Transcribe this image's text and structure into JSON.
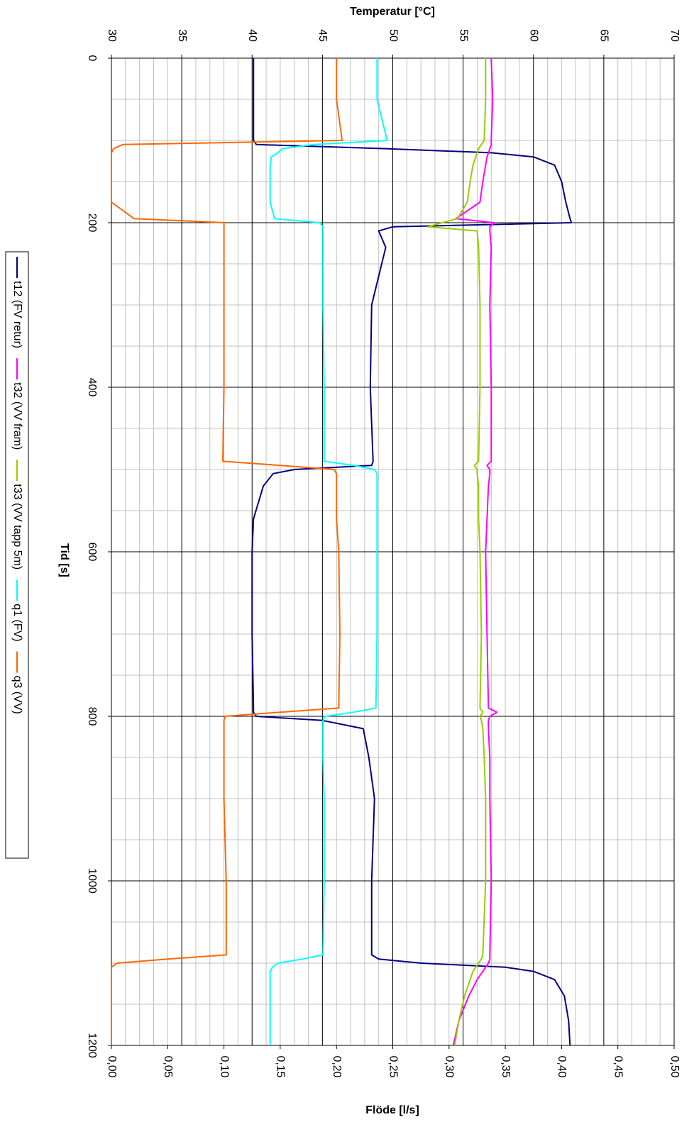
{
  "chart_data": {
    "type": "line",
    "title": "Temperatur [°C]",
    "xlabel": "Tid [s]",
    "y2label": "Flöde [l/s]",
    "x": [
      0,
      50,
      100,
      105,
      110,
      115,
      120,
      130,
      150,
      175,
      195,
      200,
      205,
      210,
      230,
      300,
      400,
      490,
      495,
      500,
      505,
      520,
      560,
      600,
      700,
      790,
      795,
      800,
      805,
      815,
      850,
      900,
      1000,
      1090,
      1095,
      1100,
      1105,
      1110,
      1120,
      1140,
      1170,
      1200
    ],
    "xlim": [
      0,
      1200
    ],
    "xticks": [
      0,
      200,
      400,
      600,
      800,
      1000,
      1200
    ],
    "xminorticks": [
      50,
      100,
      150,
      250,
      300,
      350,
      450,
      500,
      550,
      650,
      700,
      750,
      850,
      900,
      950,
      1050,
      1100,
      1150
    ],
    "ylim": [
      30,
      70
    ],
    "yticks": [
      30,
      35,
      40,
      45,
      50,
      55,
      60,
      65,
      70
    ],
    "yminorticks": [
      31,
      32,
      33,
      34,
      36,
      37,
      38,
      39,
      41,
      42,
      43,
      44,
      46,
      47,
      48,
      49,
      51,
      52,
      53,
      54,
      56,
      57,
      58,
      59,
      61,
      62,
      63,
      64,
      66,
      67,
      68,
      69
    ],
    "y2lim": [
      0,
      0.5
    ],
    "y2ticks": [
      {
        "value": 0,
        "label": "0,00"
      },
      {
        "value": 0.05,
        "label": "0,05"
      },
      {
        "value": 0.1,
        "label": "0,10"
      },
      {
        "value": 0.15,
        "label": "0,15"
      },
      {
        "value": 0.2,
        "label": "0,20"
      },
      {
        "value": 0.25,
        "label": "0,25"
      },
      {
        "value": 0.3,
        "label": "0,30"
      },
      {
        "value": 0.35,
        "label": "0,35"
      },
      {
        "value": 0.4,
        "label": "0,40"
      },
      {
        "value": 0.45,
        "label": "0,45"
      },
      {
        "value": 0.5,
        "label": "0,50"
      }
    ],
    "grid": true,
    "legend": "left",
    "series": [
      {
        "name": "t12 (FV retur)",
        "color": "#000080",
        "values": [
          40.1,
          40.1,
          40.1,
          40.3,
          49.5,
          57.0,
          60.0,
          61.5,
          62.0,
          62.3,
          62.6,
          62.7,
          50.0,
          49.0,
          49.5,
          48.5,
          48.4,
          48.6,
          48.5,
          43.0,
          41.5,
          40.8,
          40.1,
          40.0,
          40.0,
          40.1,
          40.1,
          40.3,
          45.0,
          47.9,
          48.3,
          48.7,
          48.5,
          48.5,
          49.0,
          52.0,
          58.0,
          60.0,
          61.5,
          62.2,
          62.5,
          62.6
        ]
      },
      {
        "name": "t32 (VV fram)",
        "color": "#ff00ff",
        "values": [
          57.0,
          57.1,
          57.0,
          57.0,
          56.9,
          56.8,
          56.7,
          56.6,
          56.4,
          56.2,
          54.5,
          57.2,
          56.9,
          56.9,
          57.0,
          56.9,
          57.0,
          57.0,
          56.7,
          56.9,
          56.9,
          56.8,
          56.7,
          56.6,
          56.7,
          56.8,
          57.4,
          56.9,
          56.8,
          56.8,
          56.9,
          56.9,
          57.0,
          56.9,
          56.9,
          56.8,
          56.6,
          56.4,
          56.0,
          55.4,
          54.7,
          54.3
        ]
      },
      {
        "name": "t33 (VV tapp 5m)",
        "color": "#99cc00",
        "values": [
          56.6,
          56.6,
          56.5,
          56.3,
          56.1,
          56.0,
          55.9,
          55.7,
          55.5,
          55.3,
          54.6,
          53.5,
          52.5,
          56.0,
          56.1,
          56.2,
          56.2,
          56.1,
          55.8,
          56.0,
          56.0,
          56.1,
          56.1,
          56.2,
          56.3,
          56.2,
          56.4,
          56.2,
          56.3,
          56.4,
          56.5,
          56.6,
          56.6,
          56.4,
          56.3,
          56.1,
          55.9,
          55.7,
          55.5,
          55.1,
          54.7,
          54.4
        ]
      },
      {
        "name": "q1 (FV)",
        "color": "#00ffff",
        "axis": "y2",
        "values": [
          0.236,
          0.236,
          0.245,
          0.18,
          0.152,
          0.148,
          0.142,
          0.141,
          0.141,
          0.141,
          0.145,
          0.185,
          0.188,
          0.188,
          0.188,
          0.188,
          0.189,
          0.189,
          0.215,
          0.234,
          0.236,
          0.236,
          0.236,
          0.236,
          0.236,
          0.235,
          0.215,
          0.19,
          0.188,
          0.188,
          0.188,
          0.189,
          0.189,
          0.188,
          0.17,
          0.148,
          0.143,
          0.141,
          0.141,
          0.141,
          0.141,
          0.141
        ]
      },
      {
        "name": "q3 (VV)",
        "color": "#ff6600",
        "axis": "y2",
        "values": [
          0.2,
          0.2,
          0.205,
          0.01,
          0.002,
          0,
          0,
          0,
          0,
          0,
          0.02,
          0.1,
          0.1,
          0.1,
          0.1,
          0.1,
          0.1,
          0.099,
          0.15,
          0.198,
          0.2,
          0.2,
          0.2,
          0.202,
          0.203,
          0.202,
          0.15,
          0.101,
          0.1,
          0.1,
          0.1,
          0.1,
          0.102,
          0.102,
          0.05,
          0.005,
          0,
          0,
          0,
          0,
          0,
          0
        ]
      }
    ]
  }
}
